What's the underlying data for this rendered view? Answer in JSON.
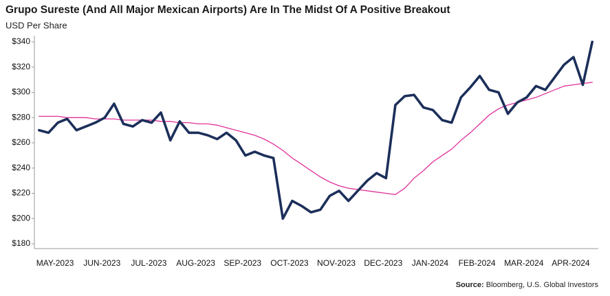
{
  "chart_data": {
    "type": "line",
    "title": "Grupo Sureste (And All Major Mexican Airports) Are In The Midst Of A Positive Breakout",
    "subtitle": "USD Per Share",
    "source_label": "Source:",
    "source": "Bloomberg, U.S. Global Investors",
    "categories": [
      null,
      null,
      "MAY-2023",
      null,
      null,
      null,
      null,
      "JUN-2023",
      null,
      null,
      null,
      null,
      "JUL-2023",
      null,
      null,
      null,
      null,
      "AUG-2023",
      null,
      null,
      null,
      null,
      "SEP-2023",
      null,
      null,
      null,
      null,
      "OCT-2023",
      null,
      null,
      null,
      null,
      "NOV-2023",
      null,
      null,
      null,
      null,
      "DEC-2023",
      null,
      null,
      null,
      null,
      "JAN-2024",
      null,
      null,
      null,
      null,
      "FEB-2024",
      null,
      null,
      null,
      null,
      "MAR-2024",
      null,
      null,
      null,
      null,
      "APR-2024",
      null,
      null
    ],
    "series": [
      {
        "color": "#e0309a",
        "values": [
          281,
          281,
          281,
          280,
          280,
          280,
          279,
          279,
          279,
          278,
          278,
          278,
          278,
          277,
          277,
          276,
          276,
          275,
          275,
          274,
          272,
          270,
          268,
          266,
          263,
          259,
          254,
          248,
          243,
          238,
          233,
          229,
          226,
          224,
          223,
          222,
          221,
          220,
          219,
          224,
          232,
          238,
          245,
          250,
          255,
          262,
          268,
          275,
          282,
          287,
          290,
          292,
          294,
          296,
          299,
          302,
          305,
          306,
          307,
          308
        ]
      },
      {
        "color": "#1c2f5a",
        "values": [
          270,
          268,
          276,
          279,
          270,
          273,
          276,
          280,
          291,
          275,
          273,
          278,
          276,
          284,
          262,
          277,
          268,
          268,
          266,
          263,
          268,
          262,
          250,
          253,
          250,
          248,
          200,
          214,
          210,
          205,
          207,
          218,
          222,
          214,
          222,
          230,
          236,
          232,
          290,
          297,
          298,
          288,
          286,
          278,
          276,
          296,
          304,
          313,
          302,
          300,
          283,
          292,
          296,
          305,
          302,
          312,
          322,
          328,
          306,
          340
        ]
      }
    ],
    "ylim": [
      180,
      340
    ],
    "yticks": [
      {
        "value": 180,
        "label": "$180"
      },
      {
        "value": 200,
        "label": "$200"
      },
      {
        "value": 220,
        "label": "$220"
      },
      {
        "value": 240,
        "label": "$240"
      },
      {
        "value": 260,
        "label": "$260"
      },
      {
        "value": 280,
        "label": "$280"
      },
      {
        "value": 300,
        "label": "$300"
      },
      {
        "value": 320,
        "label": "$320"
      },
      {
        "value": 340,
        "label": "$340"
      }
    ],
    "grid": false
  }
}
